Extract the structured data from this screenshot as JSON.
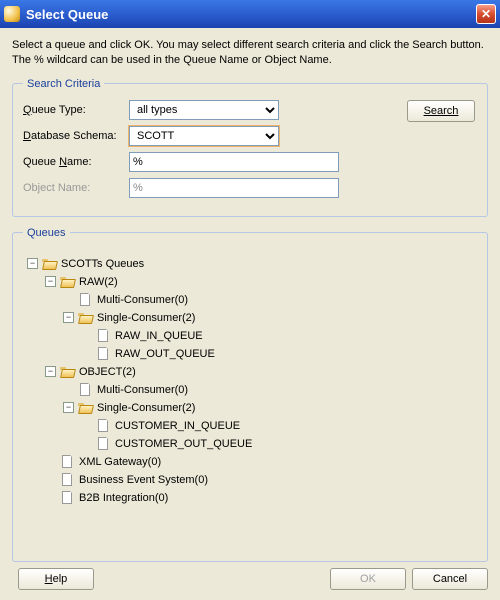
{
  "title": "Select Queue",
  "instructions": "Select a queue and click OK. You may select different search criteria and click the Search button. The % wildcard can be used in the Queue Name or Object Name.",
  "criteria": {
    "legend": "Search Criteria",
    "queue_type_label": "Queue Type:",
    "queue_type_value": "all types",
    "db_schema_label": "Database Schema:",
    "db_schema_value": "SCOTT",
    "queue_name_label": "Queue Name:",
    "queue_name_value": "%",
    "object_name_label": "Object Name:",
    "object_name_value": "%",
    "search_label": "Search"
  },
  "queues": {
    "legend": "Queues",
    "root": "SCOTTs Queues",
    "raw": "RAW(2)",
    "raw_multi": "Multi-Consumer(0)",
    "raw_single": "Single-Consumer(2)",
    "raw_in": "RAW_IN_QUEUE",
    "raw_out": "RAW_OUT_QUEUE",
    "object": "OBJECT(2)",
    "obj_multi": "Multi-Consumer(0)",
    "obj_single": "Single-Consumer(2)",
    "cust_in": "CUSTOMER_IN_QUEUE",
    "cust_out": "CUSTOMER_OUT_QUEUE",
    "xml": "XML Gateway(0)",
    "bes": "Business Event System(0)",
    "b2b": "B2B Integration(0)"
  },
  "buttons": {
    "help": "Help",
    "ok": "OK",
    "cancel": "Cancel"
  },
  "toggles": {
    "minus": "−",
    "plus": "+"
  },
  "colors": {
    "legend": "#1a3f9c",
    "border": "#b6c6e4",
    "background": "#ece9d8"
  }
}
